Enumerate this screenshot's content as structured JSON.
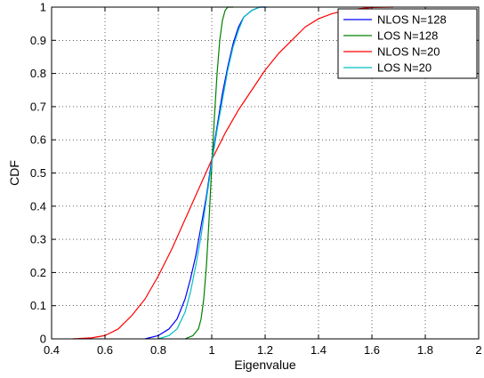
{
  "chart_data": {
    "type": "line",
    "title": "",
    "xlabel": "Eigenvalue",
    "ylabel": "CDF",
    "xlim": [
      0.4,
      2.0
    ],
    "ylim": [
      0,
      1
    ],
    "xticks": [
      0.4,
      0.6,
      0.8,
      1.0,
      1.2,
      1.4,
      1.6,
      1.8,
      2.0
    ],
    "xtick_labels": [
      "0.4",
      "0.6",
      "0.8",
      "1",
      "1.2",
      "1.4",
      "1.6",
      "1.8",
      "2"
    ],
    "yticks": [
      0,
      0.1,
      0.2,
      0.3,
      0.4,
      0.5,
      0.6,
      0.7,
      0.8,
      0.9,
      1.0
    ],
    "ytick_labels": [
      "0",
      "0.1",
      "0.2",
      "0.3",
      "0.4",
      "0.5",
      "0.6",
      "0.7",
      "0.8",
      "0.9",
      "1"
    ],
    "grid": true,
    "legend_position": "top-right",
    "series": [
      {
        "name": "NLOS N=128",
        "color": "#0000ff",
        "x": [
          0.75,
          0.8,
          0.84,
          0.87,
          0.9,
          0.92,
          0.94,
          0.96,
          0.98,
          1.0,
          1.02,
          1.04,
          1.06,
          1.08,
          1.1,
          1.12,
          1.15,
          1.18,
          1.2
        ],
        "y": [
          0.0,
          0.01,
          0.03,
          0.06,
          0.12,
          0.18,
          0.25,
          0.34,
          0.43,
          0.54,
          0.64,
          0.74,
          0.82,
          0.89,
          0.94,
          0.97,
          0.99,
          1.0,
          1.0
        ]
      },
      {
        "name": "LOS N=128",
        "color": "#008000",
        "x": [
          0.9,
          0.93,
          0.95,
          0.96,
          0.97,
          0.98,
          0.99,
          1.0,
          1.01,
          1.02,
          1.03,
          1.04,
          1.05,
          1.06,
          1.08
        ],
        "y": [
          0.0,
          0.01,
          0.03,
          0.06,
          0.12,
          0.22,
          0.36,
          0.52,
          0.67,
          0.8,
          0.9,
          0.96,
          0.99,
          1.0,
          1.0
        ]
      },
      {
        "name": "NLOS N=20",
        "color": "#ff0000",
        "x": [
          0.48,
          0.55,
          0.6,
          0.65,
          0.7,
          0.75,
          0.8,
          0.85,
          0.9,
          0.95,
          1.0,
          1.05,
          1.1,
          1.15,
          1.2,
          1.25,
          1.3,
          1.35,
          1.4,
          1.45,
          1.5,
          1.55,
          1.6,
          1.68
        ],
        "y": [
          0.0,
          0.003,
          0.01,
          0.03,
          0.07,
          0.12,
          0.19,
          0.27,
          0.36,
          0.45,
          0.54,
          0.62,
          0.69,
          0.75,
          0.81,
          0.86,
          0.9,
          0.94,
          0.965,
          0.98,
          0.99,
          0.995,
          0.999,
          1.0
        ]
      },
      {
        "name": "LOS N=20",
        "color": "#00bfbf",
        "x": [
          0.8,
          0.84,
          0.87,
          0.9,
          0.92,
          0.94,
          0.96,
          0.98,
          1.0,
          1.02,
          1.04,
          1.06,
          1.08,
          1.1,
          1.12,
          1.15,
          1.18,
          1.21
        ],
        "y": [
          0.0,
          0.01,
          0.03,
          0.08,
          0.14,
          0.22,
          0.31,
          0.42,
          0.53,
          0.63,
          0.72,
          0.81,
          0.88,
          0.93,
          0.97,
          0.99,
          1.0,
          1.0
        ]
      }
    ]
  }
}
